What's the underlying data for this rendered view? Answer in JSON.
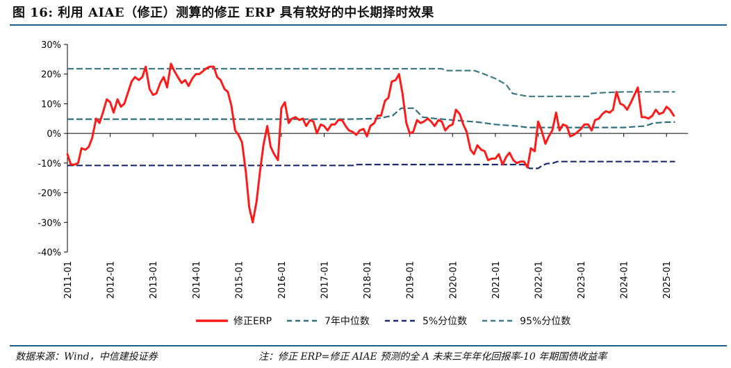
{
  "figure": {
    "title": "图 16:  利用 AIAE（修正）测算的修正 ERP 具有较好的中长期择时效果",
    "source": "数据来源：Wind，中信建投证券",
    "note": "注：修正 ERP=修正 AIAE 预测的全 A 未来三年年化回报率-10 年期国债收益率"
  },
  "colors": {
    "erp": "#ff1a1a",
    "median": "#2e6f7e",
    "p5": "#1a2a6c",
    "p95": "#3d7a86",
    "axis": "#000000",
    "rule": "#1f5f88"
  },
  "chart_data": {
    "type": "line",
    "title": "",
    "xlabel": "",
    "ylabel": "",
    "ylim": [
      -40,
      30
    ],
    "yticks": [
      -40,
      -30,
      -20,
      -10,
      0,
      10,
      20,
      30
    ],
    "ytick_labels": [
      "-40%",
      "-30%",
      "-20%",
      "-10%",
      "0%",
      "10%",
      "20%",
      "30%"
    ],
    "xlim": [
      2011.0,
      2025.5
    ],
    "xtick_labels": [
      "2011-01",
      "2012-01",
      "2013-01",
      "2014-01",
      "2015-01",
      "2016-01",
      "2017-01",
      "2018-01",
      "2019-01",
      "2020-01",
      "2021-01",
      "2022-01",
      "2023-01",
      "2024-01",
      "2025-01"
    ],
    "xtick_values": [
      2011,
      2012,
      2013,
      2014,
      2015,
      2016,
      2017,
      2018,
      2019,
      2020,
      2021,
      2022,
      2023,
      2024,
      2025
    ],
    "legend_position": "bottom",
    "series": [
      {
        "name": "修正ERP",
        "color_key": "erp",
        "dash": "solid",
        "points": [
          [
            2011.0,
            -7
          ],
          [
            2011.08,
            -10.5
          ],
          [
            2011.17,
            -10.5
          ],
          [
            2011.25,
            -10
          ],
          [
            2011.33,
            -5
          ],
          [
            2011.42,
            -5.5
          ],
          [
            2011.5,
            -4.5
          ],
          [
            2011.58,
            -1.5
          ],
          [
            2011.67,
            5
          ],
          [
            2011.75,
            3.5
          ],
          [
            2011.83,
            7
          ],
          [
            2011.92,
            11.5
          ],
          [
            2012.0,
            10.5
          ],
          [
            2012.08,
            7
          ],
          [
            2012.17,
            11.5
          ],
          [
            2012.25,
            9
          ],
          [
            2012.33,
            10
          ],
          [
            2012.42,
            14
          ],
          [
            2012.5,
            17.5
          ],
          [
            2012.58,
            19
          ],
          [
            2012.67,
            18
          ],
          [
            2012.75,
            19
          ],
          [
            2012.83,
            22.5
          ],
          [
            2012.92,
            15
          ],
          [
            2013.0,
            13
          ],
          [
            2013.08,
            13.5
          ],
          [
            2013.17,
            17
          ],
          [
            2013.25,
            19
          ],
          [
            2013.33,
            15.5
          ],
          [
            2013.42,
            23.5
          ],
          [
            2013.5,
            21
          ],
          [
            2013.58,
            19
          ],
          [
            2013.67,
            17
          ],
          [
            2013.75,
            18
          ],
          [
            2013.83,
            16
          ],
          [
            2013.92,
            18.5
          ],
          [
            2014.0,
            20
          ],
          [
            2014.08,
            20
          ],
          [
            2014.17,
            21
          ],
          [
            2014.25,
            22
          ],
          [
            2014.33,
            22.5
          ],
          [
            2014.42,
            22.5
          ],
          [
            2014.5,
            19
          ],
          [
            2014.58,
            18
          ],
          [
            2014.67,
            15
          ],
          [
            2014.75,
            14
          ],
          [
            2014.83,
            9.5
          ],
          [
            2014.92,
            1
          ],
          [
            2015.0,
            -0.5
          ],
          [
            2015.08,
            -3
          ],
          [
            2015.17,
            -13
          ],
          [
            2015.25,
            -25
          ],
          [
            2015.33,
            -30
          ],
          [
            2015.42,
            -23
          ],
          [
            2015.5,
            -13
          ],
          [
            2015.58,
            -4
          ],
          [
            2015.67,
            2.5
          ],
          [
            2015.75,
            -4.5
          ],
          [
            2015.83,
            -7
          ],
          [
            2015.92,
            -9
          ],
          [
            2016.0,
            8.5
          ],
          [
            2016.08,
            10.5
          ],
          [
            2016.17,
            3.5
          ],
          [
            2016.25,
            5
          ],
          [
            2016.33,
            5.5
          ],
          [
            2016.42,
            4.5
          ],
          [
            2016.5,
            5
          ],
          [
            2016.58,
            2.5
          ],
          [
            2016.67,
            4.5
          ],
          [
            2016.75,
            4
          ],
          [
            2016.83,
            0
          ],
          [
            2016.92,
            3
          ],
          [
            2017.0,
            2.5
          ],
          [
            2017.08,
            1
          ],
          [
            2017.17,
            3
          ],
          [
            2017.25,
            3
          ],
          [
            2017.33,
            4.5
          ],
          [
            2017.42,
            4.5
          ],
          [
            2017.5,
            2.5
          ],
          [
            2017.58,
            1
          ],
          [
            2017.67,
            0.5
          ],
          [
            2017.75,
            -0.5
          ],
          [
            2017.83,
            1
          ],
          [
            2017.92,
            1.5
          ],
          [
            2018.0,
            -1
          ],
          [
            2018.08,
            2.5
          ],
          [
            2018.17,
            3.5
          ],
          [
            2018.25,
            6
          ],
          [
            2018.33,
            6
          ],
          [
            2018.42,
            11
          ],
          [
            2018.5,
            12
          ],
          [
            2018.58,
            17.5
          ],
          [
            2018.67,
            18
          ],
          [
            2018.75,
            20
          ],
          [
            2018.83,
            13.5
          ],
          [
            2018.92,
            3.5
          ],
          [
            2019.0,
            0
          ],
          [
            2019.08,
            0.5
          ],
          [
            2019.17,
            4.5
          ],
          [
            2019.25,
            3.5
          ],
          [
            2019.33,
            4
          ],
          [
            2019.42,
            5
          ],
          [
            2019.5,
            4
          ],
          [
            2019.58,
            2.5
          ],
          [
            2019.67,
            4.5
          ],
          [
            2019.75,
            4
          ],
          [
            2019.83,
            1
          ],
          [
            2019.92,
            2.5
          ],
          [
            2020.0,
            3
          ],
          [
            2020.08,
            8
          ],
          [
            2020.17,
            6.5
          ],
          [
            2020.25,
            3
          ],
          [
            2020.33,
            0.5
          ],
          [
            2020.42,
            -5.5
          ],
          [
            2020.5,
            -7
          ],
          [
            2020.58,
            -4
          ],
          [
            2020.67,
            -5.5
          ],
          [
            2020.75,
            -6
          ],
          [
            2020.83,
            -9
          ],
          [
            2020.92,
            -8.5
          ],
          [
            2021.0,
            -8.5
          ],
          [
            2021.08,
            -7
          ],
          [
            2021.17,
            -10.5
          ],
          [
            2021.25,
            -8
          ],
          [
            2021.33,
            -6.5
          ],
          [
            2021.42,
            -9
          ],
          [
            2021.5,
            -10
          ],
          [
            2021.58,
            -9.5
          ],
          [
            2021.67,
            -9.5
          ],
          [
            2021.75,
            -11.5
          ],
          [
            2021.83,
            -5
          ],
          [
            2021.92,
            -6
          ],
          [
            2022.0,
            4
          ],
          [
            2022.08,
            1
          ],
          [
            2022.17,
            -3.5
          ],
          [
            2022.25,
            -1
          ],
          [
            2022.33,
            1
          ],
          [
            2022.42,
            7
          ],
          [
            2022.5,
            1
          ],
          [
            2022.58,
            3
          ],
          [
            2022.67,
            2.5
          ],
          [
            2022.75,
            -1
          ],
          [
            2022.83,
            -0.5
          ],
          [
            2022.92,
            0.5
          ],
          [
            2023.0,
            1.5
          ],
          [
            2023.08,
            3
          ],
          [
            2023.17,
            3
          ],
          [
            2023.25,
            1
          ],
          [
            2023.33,
            4.5
          ],
          [
            2023.42,
            5
          ],
          [
            2023.5,
            6.5
          ],
          [
            2023.58,
            7.5
          ],
          [
            2023.67,
            7
          ],
          [
            2023.75,
            8
          ],
          [
            2023.83,
            14
          ],
          [
            2023.92,
            10
          ],
          [
            2024.0,
            9.5
          ],
          [
            2024.08,
            8
          ],
          [
            2024.17,
            10.5
          ],
          [
            2024.25,
            13
          ],
          [
            2024.33,
            15.5
          ],
          [
            2024.42,
            5.5
          ],
          [
            2024.5,
            5.5
          ],
          [
            2024.58,
            5
          ],
          [
            2024.67,
            6
          ],
          [
            2024.75,
            8
          ],
          [
            2024.83,
            6.5
          ],
          [
            2024.92,
            7
          ],
          [
            2025.0,
            9
          ],
          [
            2025.08,
            8
          ],
          [
            2025.17,
            6
          ]
        ]
      },
      {
        "name": "7年中位数",
        "color_key": "median",
        "dash": "dash",
        "points": [
          [
            2011.0,
            4.8
          ],
          [
            2017.6,
            4.8
          ],
          [
            2018.25,
            5
          ],
          [
            2018.6,
            6
          ],
          [
            2018.8,
            8.5
          ],
          [
            2019.1,
            8.5
          ],
          [
            2019.3,
            5.5
          ],
          [
            2019.6,
            5
          ],
          [
            2020.0,
            4.5
          ],
          [
            2020.6,
            3.8
          ],
          [
            2021.0,
            3
          ],
          [
            2021.5,
            2.5
          ],
          [
            2021.75,
            2
          ],
          [
            2022.0,
            2
          ],
          [
            2023.0,
            2
          ],
          [
            2024.0,
            2
          ],
          [
            2024.5,
            2.5
          ],
          [
            2024.7,
            3.5
          ],
          [
            2025.0,
            3.8
          ],
          [
            2025.2,
            3.8
          ]
        ]
      },
      {
        "name": "5%分位数",
        "color_key": "p5",
        "dash": "dash",
        "points": [
          [
            2011.0,
            -10.8
          ],
          [
            2017.7,
            -10.8
          ],
          [
            2017.75,
            -10.5
          ],
          [
            2021.67,
            -10.5
          ],
          [
            2021.8,
            -11.8
          ],
          [
            2022.0,
            -11.8
          ],
          [
            2022.1,
            -10.8
          ],
          [
            2022.2,
            -10.2
          ],
          [
            2022.35,
            -10
          ],
          [
            2022.45,
            -9.5
          ],
          [
            2025.2,
            -9.5
          ]
        ]
      },
      {
        "name": "95%分位数",
        "color_key": "p95",
        "dash": "dash",
        "points": [
          [
            2011.0,
            21.8
          ],
          [
            2019.75,
            21.8
          ],
          [
            2019.85,
            21.2
          ],
          [
            2020.5,
            21.2
          ],
          [
            2020.65,
            20.5
          ],
          [
            2021.0,
            18.5
          ],
          [
            2021.25,
            16.5
          ],
          [
            2021.4,
            13.5
          ],
          [
            2021.75,
            12.5
          ],
          [
            2023.2,
            12.5
          ],
          [
            2023.25,
            13.5
          ],
          [
            2023.6,
            13.8
          ],
          [
            2024.0,
            14
          ],
          [
            2025.2,
            14
          ]
        ]
      }
    ]
  }
}
